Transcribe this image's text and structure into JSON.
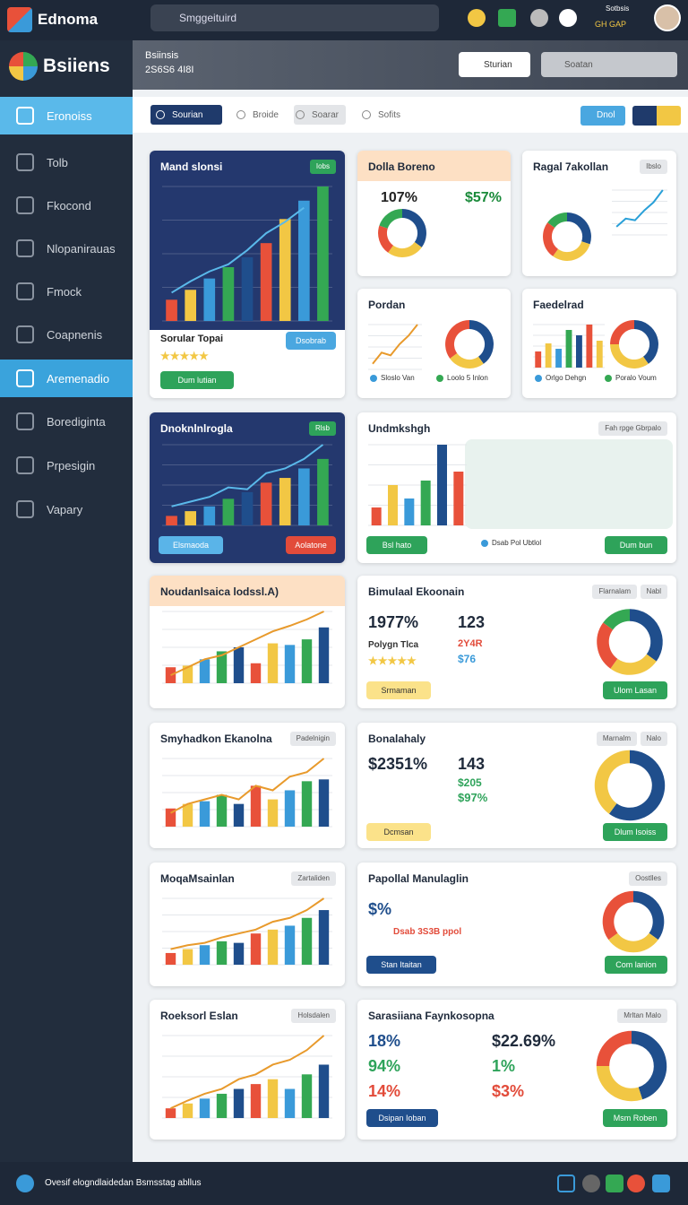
{
  "topbar": {
    "logo": "Ednoma",
    "search": "Smggeituird",
    "user": [
      "Sotbsis",
      "GH GAP"
    ]
  },
  "sidebar": {
    "brand": "Bsiiens",
    "items": [
      "Eronoiss",
      "Tolb",
      "Fkocond",
      "Nlopanirauas",
      "Fmock",
      "Coapnenis",
      "Aremenadio",
      "Borediginta",
      "Prpesigin",
      "Vapary"
    ]
  },
  "header": {
    "title": "Bsiinsis",
    "subtitle": "2S6S6 4I8I",
    "buttons": [
      "Sturian",
      "Soatan"
    ]
  },
  "tabs": {
    "items": [
      "Sourian",
      "Broide",
      "Soarar",
      "Sofits"
    ],
    "action": "Dnol"
  },
  "palette": [
    "#e8513a",
    "#f2c744",
    "#3a9ad9",
    "#34a853",
    "#1f4e8c"
  ],
  "cards": [
    {
      "title": "Mand slonsi",
      "badge": [
        "Iobs"
      ],
      "bars": [
        15,
        22,
        30,
        38,
        45,
        55,
        72,
        85,
        95
      ],
      "line": [
        20,
        28,
        35,
        40,
        50,
        62,
        70,
        80
      ],
      "stats": [
        "Sorular Topai",
        "★★★★★"
      ],
      "buttons": [
        "Dum lutian",
        "Dsobrab"
      ]
    },
    {
      "title": "Dolla Boreno",
      "donut": [
        35,
        25,
        20,
        20
      ],
      "stats": [
        "107%",
        "$57%"
      ]
    },
    {
      "title": "Ragal 7akollan",
      "badge": [
        "Ibslo"
      ],
      "line": [
        10,
        20,
        18,
        30,
        40,
        55
      ],
      "donut": [
        30,
        30,
        25,
        15
      ]
    },
    {
      "title": "Pordan",
      "line": [
        10,
        30,
        25,
        45,
        60,
        80
      ],
      "donut": [
        40,
        25,
        35
      ],
      "legend": [
        "Sloslo Van",
        "Loolo 5 Inlon"
      ]
    },
    {
      "title": "Faedelrad",
      "bars": [
        30,
        45,
        35,
        70,
        60,
        80,
        50
      ],
      "donut": [
        40,
        35,
        25
      ],
      "legend": [
        "Orlgo Dehgn",
        "Poralo Voum"
      ]
    },
    {
      "title": "Dnoknlnlrogla",
      "badge": [
        "Rlsb"
      ],
      "bars": [
        10,
        15,
        20,
        28,
        35,
        45,
        50,
        60,
        70
      ],
      "line": [
        20,
        25,
        30,
        40,
        38,
        55,
        60,
        70,
        85
      ],
      "buttons": [
        "Elsmaoda",
        "Aolatone"
      ]
    },
    {
      "title": "Undmkshgh",
      "badge": [
        "Fah rpge Gbrpalo"
      ],
      "bars": [
        20,
        45,
        30,
        50,
        90,
        60
      ],
      "legend": [
        "Dsab Pol Ubtlol"
      ],
      "buttons": [
        "Bsl hato",
        "Dum bun"
      ]
    },
    {
      "title": "Noudanlsaica lodssl.A)",
      "bars": [
        20,
        22,
        30,
        40,
        45,
        25,
        50,
        48,
        55,
        70
      ],
      "line": [
        10,
        20,
        30,
        35,
        45,
        55,
        65,
        72,
        80,
        90
      ]
    },
    {
      "title": "Bimulaal Ekoonain",
      "badge": [
        "Flarnalam",
        "Nabl"
      ],
      "stats": [
        "1977%",
        "123",
        "Polygn Tlca",
        "2Y4R",
        "$76",
        "★★★★★"
      ],
      "donut": [
        35,
        25,
        25,
        15
      ],
      "buttons": [
        "Srmaman",
        "Ulom Lasan"
      ]
    },
    {
      "title": "Smyhadkon Ekanolna",
      "badge": [
        "Padelnigin"
      ],
      "bars": [
        20,
        25,
        28,
        35,
        25,
        45,
        30,
        40,
        50,
        52
      ],
      "line": [
        15,
        25,
        30,
        35,
        30,
        45,
        40,
        55,
        60,
        75
      ]
    },
    {
      "title": "Bonalahaly",
      "badge": [
        "Marnalm",
        "Nalo"
      ],
      "stats": [
        "$2351%",
        "143",
        "$205",
        "$97%"
      ],
      "donut": [
        60,
        40
      ],
      "buttons": [
        "Dcmsan",
        "Dlum Isoiss"
      ]
    },
    {
      "title": "MoqaMsainlan",
      "badge": [
        "Zartaliden"
      ],
      "bars": [
        15,
        20,
        25,
        30,
        28,
        40,
        45,
        50,
        60,
        70
      ],
      "line": [
        20,
        25,
        28,
        35,
        40,
        45,
        55,
        60,
        70,
        85
      ]
    },
    {
      "title": "Papollal Manulaglin",
      "badge": [
        "Oostlles"
      ],
      "stats": [
        "$%",
        "Dsab 3S3B ppol"
      ],
      "donut": [
        35,
        30,
        35
      ],
      "buttons": [
        "Stan Itaitan",
        "Com lanion"
      ]
    },
    {
      "title": "Roeksorl Eslan",
      "badge": [
        "Holsdalen"
      ],
      "bars": [
        10,
        15,
        20,
        25,
        30,
        35,
        40,
        30,
        45,
        55
      ],
      "line": [
        10,
        18,
        25,
        30,
        40,
        45,
        55,
        60,
        70,
        85
      ]
    },
    {
      "title": "Sarasiiana Faynkosopna",
      "badge": [
        "Mrltan Malo"
      ],
      "stats": [
        "18%",
        "$22.69%",
        "94%",
        "1%",
        "14%",
        "$3%"
      ],
      "donut": [
        45,
        30,
        25
      ],
      "buttons": [
        "Dsipan Ioban",
        "Msm Roben"
      ]
    }
  ],
  "footer": {
    "text": "Ovesif elogndlaidedan Bsmsstag abllus"
  }
}
